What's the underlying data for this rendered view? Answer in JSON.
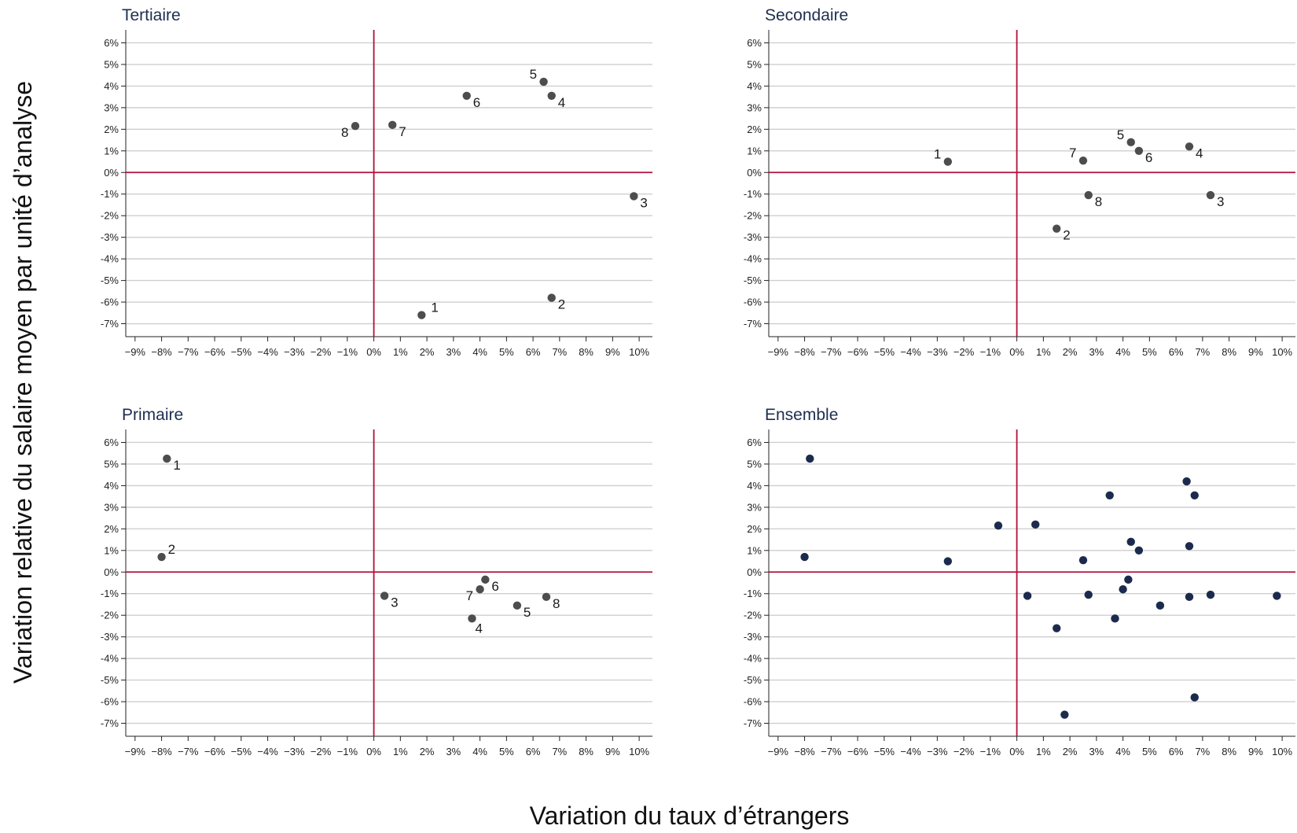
{
  "chart_data": {
    "type": "scatter",
    "xlabel": "Variation du taux d’étrangers",
    "ylabel": "Variation relative du salaire moyen par unité d’analyse",
    "xlim": [
      -9,
      10
    ],
    "ylim": [
      -7,
      6
    ],
    "x_ticks": [
      "−9%",
      "−8%",
      "−7%",
      "−6%",
      "−5%",
      "−4%",
      "−3%",
      "−2%",
      "−1%",
      "0%",
      "1%",
      "2%",
      "3%",
      "4%",
      "5%",
      "6%",
      "7%",
      "8%",
      "9%",
      "10%"
    ],
    "y_ticks": [
      "6%",
      "5%",
      "4%",
      "3%",
      "2%",
      "1%",
      "0%",
      "-1%",
      "-2%",
      "-3%",
      "-4%",
      "-5%",
      "-6%",
      "-7%"
    ],
    "grid": "horizontal",
    "reference_lines": {
      "x": 0,
      "y": 0,
      "color": "#b0103a"
    },
    "panels": [
      {
        "title": "Tertiaire",
        "point_color": "#4d4d4d",
        "points": [
          {
            "label": "1",
            "x": 1.8,
            "y": -6.6
          },
          {
            "label": "2",
            "x": 6.7,
            "y": -5.8
          },
          {
            "label": "3",
            "x": 9.8,
            "y": -1.1
          },
          {
            "label": "4",
            "x": 6.7,
            "y": 3.55
          },
          {
            "label": "5",
            "x": 6.4,
            "y": 4.2
          },
          {
            "label": "6",
            "x": 3.5,
            "y": 3.55
          },
          {
            "label": "7",
            "x": 0.7,
            "y": 2.2
          },
          {
            "label": "8",
            "x": -0.7,
            "y": 2.15
          }
        ]
      },
      {
        "title": "Secondaire",
        "point_color": "#4d4d4d",
        "points": [
          {
            "label": "1",
            "x": -2.6,
            "y": 0.5
          },
          {
            "label": "2",
            "x": 1.5,
            "y": -2.6
          },
          {
            "label": "3",
            "x": 7.3,
            "y": -1.05
          },
          {
            "label": "4",
            "x": 6.5,
            "y": 1.2
          },
          {
            "label": "5",
            "x": 4.3,
            "y": 1.4
          },
          {
            "label": "6",
            "x": 4.6,
            "y": 1.0
          },
          {
            "label": "7",
            "x": 2.5,
            "y": 0.55
          },
          {
            "label": "8",
            "x": 2.7,
            "y": -1.05
          }
        ]
      },
      {
        "title": "Primaire",
        "point_color": "#4d4d4d",
        "points": [
          {
            "label": "1",
            "x": -7.8,
            "y": 5.25
          },
          {
            "label": "2",
            "x": -8.0,
            "y": 0.7
          },
          {
            "label": "3",
            "x": 0.4,
            "y": -1.1
          },
          {
            "label": "4",
            "x": 3.7,
            "y": -2.15
          },
          {
            "label": "5",
            "x": 5.4,
            "y": -1.55
          },
          {
            "label": "6",
            "x": 4.2,
            "y": -0.35
          },
          {
            "label": "7",
            "x": 4.0,
            "y": -0.8
          },
          {
            "label": "8",
            "x": 6.5,
            "y": -1.15
          }
        ]
      },
      {
        "title": "Ensemble",
        "point_color": "#1c2b4d",
        "points": [
          {
            "label": "",
            "x": -7.8,
            "y": 5.25
          },
          {
            "label": "",
            "x": -8.0,
            "y": 0.7
          },
          {
            "label": "",
            "x": -2.6,
            "y": 0.5
          },
          {
            "label": "",
            "x": -0.7,
            "y": 2.15
          },
          {
            "label": "",
            "x": 0.7,
            "y": 2.2
          },
          {
            "label": "",
            "x": 0.4,
            "y": -1.1
          },
          {
            "label": "",
            "x": 1.5,
            "y": -2.6
          },
          {
            "label": "",
            "x": 1.8,
            "y": -6.6
          },
          {
            "label": "",
            "x": 2.5,
            "y": 0.55
          },
          {
            "label": "",
            "x": 2.7,
            "y": -1.05
          },
          {
            "label": "",
            "x": 3.5,
            "y": 3.55
          },
          {
            "label": "",
            "x": 3.7,
            "y": -2.15
          },
          {
            "label": "",
            "x": 4.0,
            "y": -0.8
          },
          {
            "label": "",
            "x": 4.2,
            "y": -0.35
          },
          {
            "label": "",
            "x": 4.3,
            "y": 1.4
          },
          {
            "label": "",
            "x": 4.6,
            "y": 1.0
          },
          {
            "label": "",
            "x": 5.4,
            "y": -1.55
          },
          {
            "label": "",
            "x": 6.4,
            "y": 4.2
          },
          {
            "label": "",
            "x": 6.5,
            "y": 1.2
          },
          {
            "label": "",
            "x": 6.5,
            "y": -1.15
          },
          {
            "label": "",
            "x": 6.7,
            "y": 3.55
          },
          {
            "label": "",
            "x": 6.7,
            "y": -5.8
          },
          {
            "label": "",
            "x": 7.3,
            "y": -1.05
          },
          {
            "label": "",
            "x": 9.8,
            "y": -1.1
          }
        ]
      }
    ]
  }
}
